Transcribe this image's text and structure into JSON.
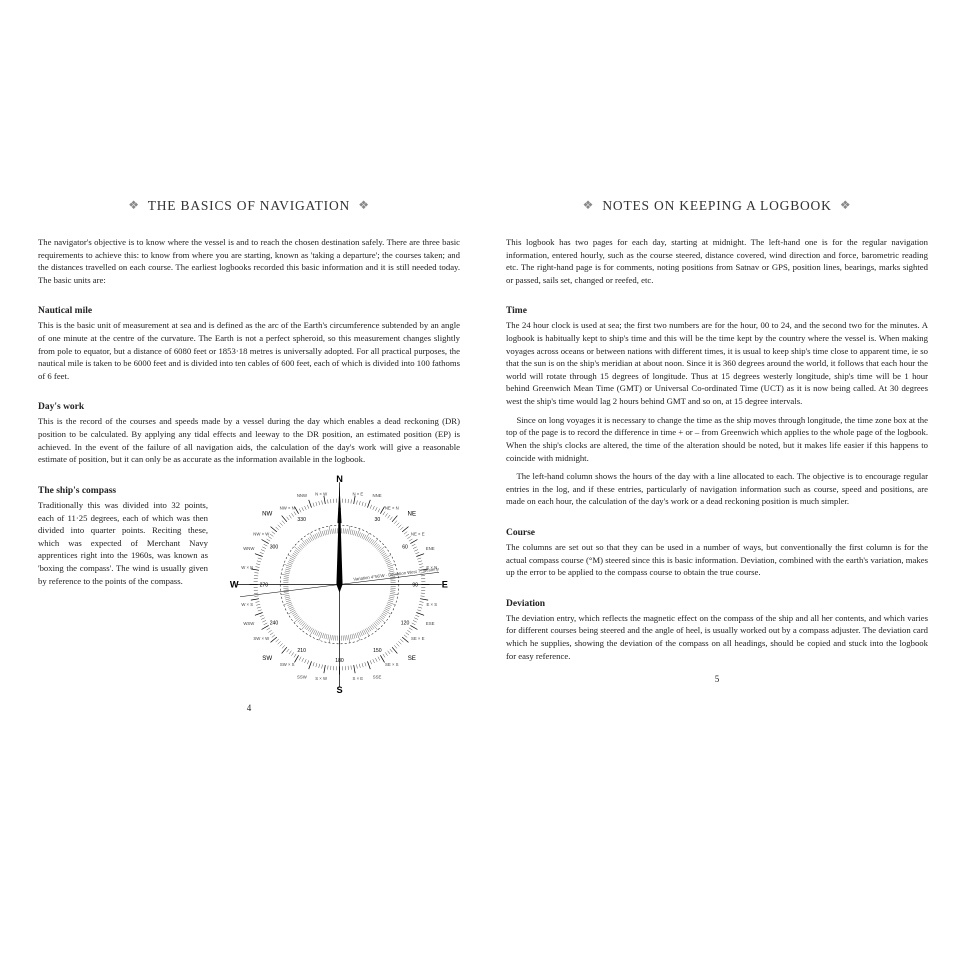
{
  "left": {
    "title": "THE BASICS OF NAVIGATION",
    "intro": "The navigator's objective is to know where the vessel is and to reach the chosen destination safely. There are three basic requirements to achieve this: to know from where you are starting, known as 'taking a departure'; the courses taken; and the distances travelled on each course. The earliest logbooks recorded this basic information and it is still needed today. The basic units are:",
    "sections": [
      {
        "heading": "Nautical mile",
        "paras": [
          "This is the basic unit of measurement at sea and is defined as the arc of the Earth's circumference subtended by an angle of one minute at the centre of the curvature. The Earth is not a perfect spheroid, so this measurement changes slightly from pole to equator, but a distance of 6080 feet or 1853·18 metres is universally adopted. For all practical purposes, the nautical mile is taken to be 6000 feet and is divided into ten cables of 600 feet, each of which is divided into 100 fathoms of 6 feet."
        ]
      },
      {
        "heading": "Day's work",
        "paras": [
          "This is the record of the courses and speeds made by a vessel during the day which enables a dead reckoning (DR) position to be calculated. By applying any tidal effects and leeway to the DR position, an estimated position (EP) is achieved. In the event of the failure of all navigation aids, the calculation of the day's work will give a reasonable estimate of position, but it can only be as accurate as the information available in the logbook."
        ]
      }
    ],
    "compass_section": {
      "heading": "The ship's compass",
      "para": "Traditionally this was divided into 32 points, each of 11·25 degrees, each of which was then divided into quarter points. Reciting these, which was expected of Merchant Navy apprentices right into the 1960s, was known as 'boxing the compass'. The wind is usually given by reference to the points of the compass."
    },
    "pagenum": "4"
  },
  "right": {
    "title": "NOTES ON KEEPING A LOGBOOK",
    "intro": "This logbook has two pages for each day, starting at midnight. The left-hand one is for the regular navigation information, entered hourly, such as the course steered, distance covered, wind direction and force, barometric reading etc. The right-hand page is for comments, noting positions from Satnav or GPS, position lines, bearings, marks sighted or passed, sails set, changed or reefed, etc.",
    "sections": [
      {
        "heading": "Time",
        "paras": [
          "The 24 hour clock is used at sea; the first two numbers are for the hour, 00 to 24, and the second two for the minutes. A logbook is habitually kept to ship's time and this will be the time kept by the country where the vessel is. When making voyages across oceans or between nations with different times, it is usual to keep ship's time close to apparent time, ie so that the sun is on the ship's meridian at about noon. Since it is 360 degrees around the world, it follows that each hour the world will rotate through 15 degrees of longitude. Thus at 15 degrees westerly longitude, ship's time will be 1 hour behind Greenwich Mean Time (GMT) or Universal Co-ordinated Time (UCT) as it is now being called. At 30 degrees west the ship's time would lag 2 hours behind GMT and so on, at 15 degree intervals.",
          "Since on long voyages it is necessary to change the time as the ship moves through longitude, the time zone box at the top of the page is to record the difference in time + or – from Greenwich which applies to the whole page of the logbook. When the ship's clocks are altered, the time of the alteration should be noted, but it makes life easier if this happens to coincide with midnight.",
          "The left-hand column shows the hours of the day with a line allocated to each. The objective is to encourage regular entries in the log, and if these entries, particularly of navigation information such as course, speed and positions, are made on each hour, the calculation of the day's work or a dead reckoning position is much simpler."
        ]
      },
      {
        "heading": "Course",
        "paras": [
          "The columns are set out so that they can be used in a number of ways, but conventionally the first column is for the actual compass course (°M) steered since this is basic information. Deviation, combined with the earth's variation, makes up the error to be applied to the compass course to obtain the true course."
        ]
      },
      {
        "heading": "Deviation",
        "paras": [
          "The deviation entry, which reflects the magnetic effect on the compass of the ship and all her contents, and which varies for different courses being steered and the angle of heel, is usually worked out by a compass adjuster. The deviation card which he supplies, showing the deviation of the compass on all headings, should be copied and stuck into the logbook for easy reference."
        ]
      }
    ],
    "pagenum": "5"
  },
  "ornament": "❖",
  "compass": {
    "cardinals": [
      "N",
      "E",
      "S",
      "W"
    ],
    "intercardinals": [
      "NE",
      "SE",
      "SW",
      "NW"
    ],
    "half": [
      "NNE",
      "ENE",
      "ESE",
      "SSE",
      "SSW",
      "WSW",
      "WNW",
      "NNW"
    ],
    "by": [
      "N × E",
      "NE × N",
      "NE × E",
      "E × N",
      "E × S",
      "SE × E",
      "SE × S",
      "S × E",
      "S × W",
      "SW × S",
      "SW × W",
      "W × S",
      "W × N",
      "NW × W",
      "NW × N",
      "N × W"
    ],
    "ring_outer_r": 95,
    "ring_tick_r1": 80,
    "ring_tick_r2": 88,
    "ring_inner_r": 58,
    "stroke": "#000000",
    "fill_bg": "#ffffff",
    "variation_label": "Variation 4°56'W ·  Deviation West 7° westerly"
  },
  "colors": {
    "text": "#222222",
    "ornament": "#888888",
    "bg": "#ffffff"
  }
}
